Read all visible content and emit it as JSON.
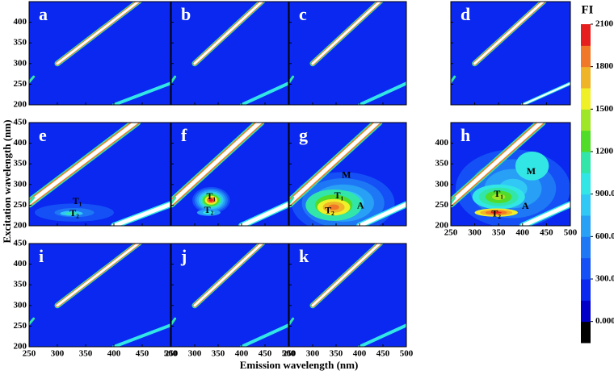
{
  "chart_data": {
    "type": "contour",
    "xlabel": "Emission wavelength (nm)",
    "ylabel": "Excitation wavelength (nm)",
    "xlim": [
      250,
      500
    ],
    "xticks": [
      250,
      300,
      350,
      400,
      450,
      500
    ],
    "ylim": [
      200,
      450
    ],
    "yticks": [
      200,
      250,
      300,
      350,
      400,
      450
    ],
    "panels": [
      {
        "label": "a"
      },
      {
        "label": "b"
      },
      {
        "label": "c"
      },
      {
        "label": "d"
      },
      {
        "label": "e",
        "annotations": [
          "T₁",
          "T₂"
        ]
      },
      {
        "label": "f",
        "annotations": [
          "T₁",
          "T₂"
        ]
      },
      {
        "label": "g",
        "annotations": [
          "M",
          "T₁",
          "T₂",
          "A"
        ]
      },
      {
        "label": "h",
        "annotations": [
          "M",
          "T₁",
          "A",
          "T₂"
        ]
      },
      {
        "label": "i"
      },
      {
        "label": "j"
      },
      {
        "label": "k"
      }
    ],
    "colorbar": {
      "title": "FI",
      "lim": [
        -150,
        2100
      ],
      "ticks": [
        {
          "value": 0,
          "label": "0.000"
        },
        {
          "value": 300,
          "label": "300.0"
        },
        {
          "value": 600,
          "label": "600.0"
        },
        {
          "value": 900,
          "label": "900.0"
        },
        1200,
        1500,
        1800,
        2100
      ],
      "colors": [
        "#000000",
        "#0000c8",
        "#0a28f0",
        "#1450f5",
        "#1e78f5",
        "#28a0f5",
        "#32c8f5",
        "#32e6e6",
        "#32e6aa",
        "#50dc28",
        "#a0e628",
        "#f0f028",
        "#f0b428",
        "#f07828",
        "#e61e1e"
      ]
    }
  }
}
